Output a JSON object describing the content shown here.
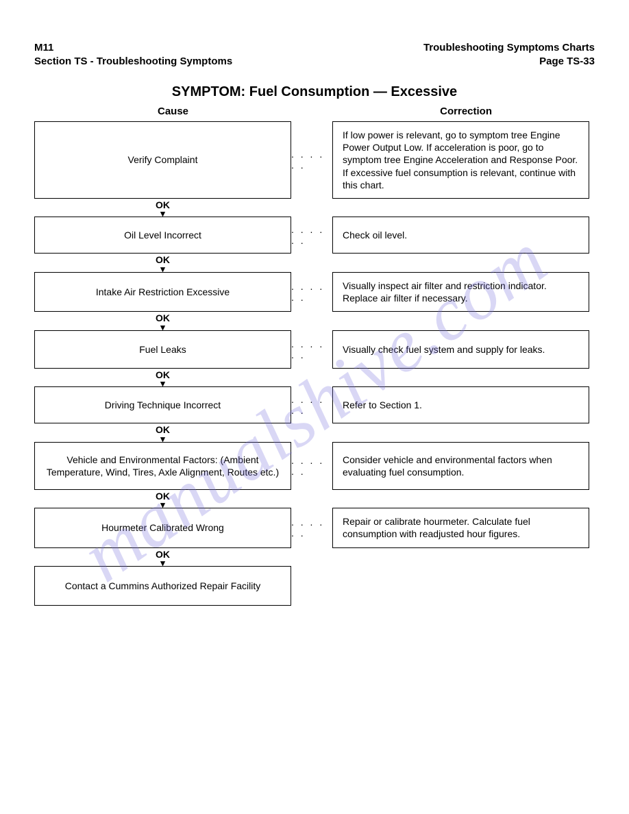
{
  "header": {
    "left_line1": "M11",
    "left_line2": "Section TS - Troubleshooting Symptoms",
    "right_line1": "Troubleshooting Symptoms Charts",
    "right_line2": "Page TS-33"
  },
  "title": "SYMPTOM:  Fuel Consumption — Excessive",
  "column_headers": {
    "left": "Cause",
    "right": "Correction"
  },
  "connector_label": "OK",
  "connector_arrow": "▾",
  "dots": ". . . . . .",
  "watermark_text": "manualshive.com",
  "rows": [
    {
      "cause": "Verify Complaint",
      "correction": "If low power is relevant, go to symptom tree Engine Power Output Low. If acceleration is poor, go to symptom tree Engine Acceleration and Response Poor. If excessive fuel consumption is relevant, continue with this chart.",
      "cause_height": 100,
      "correction_height": 100
    },
    {
      "cause": "Oil Level Incorrect",
      "correction": "Check oil level.",
      "cause_height": 54,
      "correction_height": 54
    },
    {
      "cause": "Intake Air Restriction Excessive",
      "correction": "Visually inspect air filter and restriction indicator. Replace air filter if necessary.",
      "cause_height": 56,
      "correction_height": 56
    },
    {
      "cause": "Fuel Leaks",
      "correction": "Visually check fuel system and supply for leaks.",
      "cause_height": 56,
      "correction_height": 56
    },
    {
      "cause": "Driving Technique Incorrect",
      "correction": "Refer to Section 1.",
      "cause_height": 54,
      "correction_height": 54
    },
    {
      "cause": "Vehicle and Environmental Factors: (Ambient Temperature, Wind, Tires, Axle Alignment, Routes etc.)",
      "correction": "Consider vehicle and environmental factors when evaluating fuel consumption.",
      "cause_height": 70,
      "correction_height": 70
    },
    {
      "cause": "Hourmeter Calibrated Wrong",
      "correction": "Repair or calibrate hourmeter. Calculate fuel consumption with readjusted hour figures.",
      "cause_height": 58,
      "correction_height": 58
    },
    {
      "cause": "Contact a Cummins Authorized Repair Facility",
      "correction": null,
      "cause_height": 58,
      "correction_height": 58
    }
  ],
  "colors": {
    "text": "#000000",
    "background": "#ffffff",
    "border": "#000000",
    "watermark": "rgba(120,110,220,0.28)"
  }
}
